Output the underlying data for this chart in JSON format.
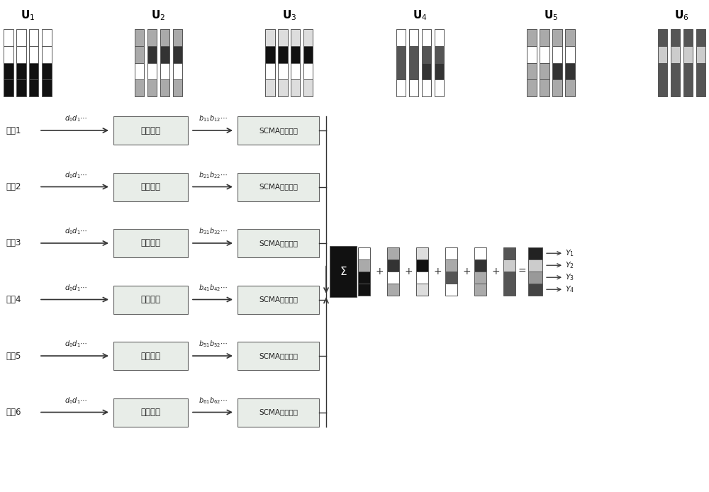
{
  "bg": "#ffffff",
  "arrow_color": "#333333",
  "flow_box_fc": "#e8ede8",
  "flow_box_ec": "#666666",
  "sigma_fc": "#111111",
  "top_bar_groups": [
    {
      "label": "U_1",
      "bars": [
        [
          "#111111",
          "#111111",
          "#ffffff",
          "#ffffff"
        ],
        [
          "#111111",
          "#111111",
          "#ffffff",
          "#ffffff"
        ],
        [
          "#111111",
          "#111111",
          "#ffffff",
          "#ffffff"
        ],
        [
          "#111111",
          "#111111",
          "#ffffff",
          "#ffffff"
        ]
      ]
    },
    {
      "label": "U_2",
      "bars": [
        [
          "#aaaaaa",
          "#ffffff",
          "#aaaaaa",
          "#aaaaaa"
        ],
        [
          "#aaaaaa",
          "#ffffff",
          "#333333",
          "#aaaaaa"
        ],
        [
          "#aaaaaa",
          "#ffffff",
          "#333333",
          "#aaaaaa"
        ],
        [
          "#aaaaaa",
          "#ffffff",
          "#333333",
          "#aaaaaa"
        ]
      ]
    },
    {
      "label": "U_3",
      "bars": [
        [
          "#dddddd",
          "#ffffff",
          "#111111",
          "#dddddd"
        ],
        [
          "#dddddd",
          "#ffffff",
          "#111111",
          "#dddddd"
        ],
        [
          "#dddddd",
          "#ffffff",
          "#111111",
          "#dddddd"
        ],
        [
          "#dddddd",
          "#ffffff",
          "#111111",
          "#dddddd"
        ]
      ]
    },
    {
      "label": "U_4",
      "bars": [
        [
          "#ffffff",
          "#555555",
          "#555555",
          "#ffffff"
        ],
        [
          "#ffffff",
          "#555555",
          "#555555",
          "#ffffff"
        ],
        [
          "#ffffff",
          "#333333",
          "#555555",
          "#ffffff"
        ],
        [
          "#ffffff",
          "#333333",
          "#555555",
          "#ffffff"
        ]
      ]
    },
    {
      "label": "U_5",
      "bars": [
        [
          "#aaaaaa",
          "#aaaaaa",
          "#ffffff",
          "#aaaaaa"
        ],
        [
          "#aaaaaa",
          "#aaaaaa",
          "#ffffff",
          "#aaaaaa"
        ],
        [
          "#aaaaaa",
          "#333333",
          "#ffffff",
          "#aaaaaa"
        ],
        [
          "#aaaaaa",
          "#333333",
          "#ffffff",
          "#aaaaaa"
        ]
      ]
    },
    {
      "label": "U_6",
      "bars": [
        [
          "#555555",
          "#555555",
          "#cccccc",
          "#555555"
        ],
        [
          "#555555",
          "#555555",
          "#cccccc",
          "#555555"
        ],
        [
          "#555555",
          "#555555",
          "#cccccc",
          "#555555"
        ],
        [
          "#555555",
          "#555555",
          "#cccccc",
          "#555555"
        ]
      ]
    }
  ],
  "sum_bars": [
    [
      "#111111",
      "#111111",
      "#aaaaaa",
      "#ffffff"
    ],
    [
      "#aaaaaa",
      "#ffffff",
      "#333333",
      "#aaaaaa"
    ],
    [
      "#dddddd",
      "#ffffff",
      "#111111",
      "#dddddd"
    ],
    [
      "#ffffff",
      "#555555",
      "#aaaaaa",
      "#ffffff"
    ],
    [
      "#aaaaaa",
      "#aaaaaa",
      "#333333",
      "#ffffff"
    ],
    [
      "#555555",
      "#555555",
      "#cccccc",
      "#555555"
    ]
  ],
  "result_bar": [
    "#444444",
    "#999999",
    "#cccccc",
    "#222222"
  ],
  "users_cn": [
    "用户1",
    "用户2",
    "用户3",
    "用户4",
    "用户5",
    "用户6"
  ],
  "ch_text": "信道编码",
  "scma_text": "SCMA码本映射",
  "b_subs": [
    [
      "11",
      "12"
    ],
    [
      "21",
      "22"
    ],
    [
      "31",
      "32"
    ],
    [
      "41",
      "42"
    ],
    [
      "51",
      "52"
    ],
    [
      "61",
      "62"
    ]
  ]
}
